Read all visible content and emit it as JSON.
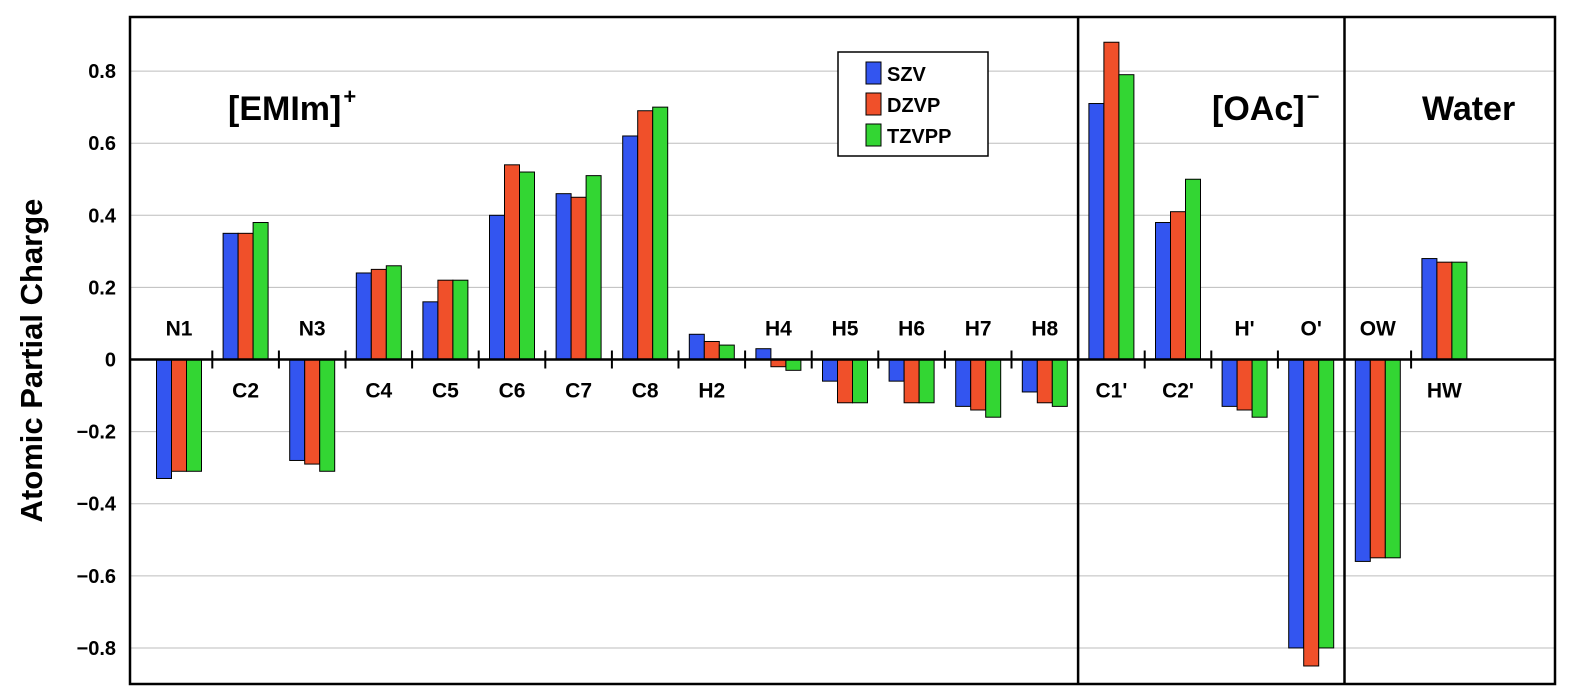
{
  "chart_data": {
    "type": "bar",
    "ylabel": "Atomic Partial Charge",
    "ylim": [
      -0.9,
      0.95
    ],
    "yticks": [
      0.8,
      0.6,
      0.4,
      0.2,
      0,
      -0.2,
      -0.4,
      -0.6,
      -0.8
    ],
    "ytick_labels": [
      "0.8",
      "0.6",
      "0.4",
      "0.2",
      "0",
      "−0.2",
      "−0.4",
      "−0.6",
      "−0.8"
    ],
    "grid": true,
    "legend_position": "top-center",
    "categories": [
      "N1",
      "C2",
      "N3",
      "C4",
      "C5",
      "C6",
      "C7",
      "C8",
      "H2",
      "H4",
      "H5",
      "H6",
      "H7",
      "H8",
      "C1'",
      "C2'",
      "H'",
      "O'",
      "OW",
      "HW"
    ],
    "series": [
      {
        "name": "SZV",
        "color": "#3355f0",
        "values": [
          -0.33,
          0.35,
          -0.28,
          0.24,
          0.16,
          0.4,
          0.46,
          0.62,
          0.07,
          0.03,
          -0.06,
          -0.06,
          -0.13,
          -0.09,
          0.71,
          0.38,
          -0.13,
          -0.8,
          -0.56,
          0.28
        ]
      },
      {
        "name": "DZVP",
        "color": "#f0502a",
        "values": [
          -0.31,
          0.35,
          -0.29,
          0.25,
          0.22,
          0.54,
          0.45,
          0.69,
          0.05,
          -0.02,
          -0.12,
          -0.12,
          -0.14,
          -0.12,
          0.88,
          0.41,
          -0.14,
          -0.85,
          -0.55,
          0.27
        ]
      },
      {
        "name": "TZVPP",
        "color": "#33d633",
        "values": [
          -0.31,
          0.38,
          -0.31,
          0.26,
          0.22,
          0.52,
          0.51,
          0.7,
          0.04,
          -0.03,
          -0.12,
          -0.12,
          -0.16,
          -0.13,
          0.79,
          0.5,
          -0.16,
          -0.8,
          -0.55,
          0.27
        ]
      }
    ],
    "groups": [
      {
        "title": "[EMIm]",
        "superscript": "+",
        "categories": [
          "N1",
          "C2",
          "N3",
          "C4",
          "C5",
          "C6",
          "C7",
          "C8",
          "H2",
          "H4",
          "H5",
          "H6",
          "H7",
          "H8"
        ]
      },
      {
        "title": "[OAc]",
        "superscript": "−",
        "categories": [
          "C1'",
          "C2'",
          "H'",
          "O'"
        ]
      },
      {
        "title": "Water",
        "superscript": "",
        "categories": [
          "OW",
          "HW"
        ]
      }
    ],
    "label_above_axis": [
      "N1",
      "N3",
      "H4",
      "H5",
      "H6",
      "H7",
      "H8",
      "H'",
      "O'",
      "OW"
    ]
  }
}
